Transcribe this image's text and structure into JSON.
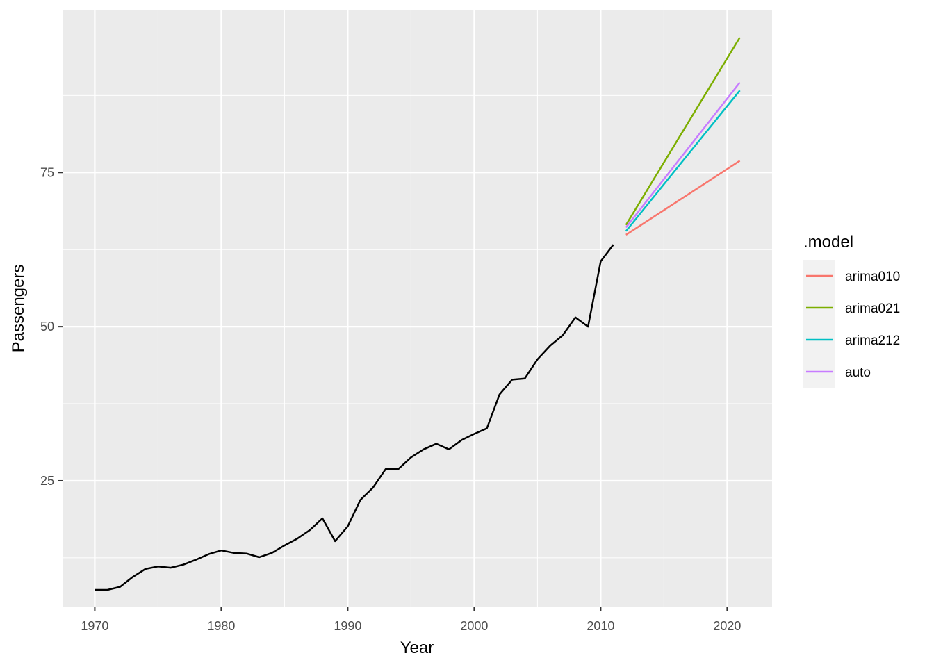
{
  "chart_data": {
    "type": "line",
    "title": "",
    "xlabel": "Year",
    "ylabel": "Passengers",
    "xlim": [
      1967.45,
      2023.55
    ],
    "ylim": [
      4.6,
      101.4
    ],
    "x_ticks": [
      1970,
      1980,
      1990,
      2000,
      2010,
      2020
    ],
    "y_ticks": [
      25,
      50,
      75
    ],
    "grid": true,
    "legend": {
      "title": ".model",
      "placement": "right"
    },
    "history": {
      "x": [
        1970,
        1971,
        1972,
        1973,
        1974,
        1975,
        1976,
        1977,
        1978,
        1979,
        1980,
        1981,
        1982,
        1983,
        1984,
        1985,
        1986,
        1987,
        1988,
        1989,
        1990,
        1991,
        1992,
        1993,
        1994,
        1995,
        1996,
        1997,
        1998,
        1999,
        2000,
        2001,
        2002,
        2003,
        2004,
        2005,
        2006,
        2007,
        2008,
        2009,
        2010,
        2011
      ],
      "values": [
        7.3,
        7.3,
        7.8,
        9.4,
        10.7,
        11.1,
        10.9,
        11.4,
        12.2,
        13.1,
        13.7,
        13.3,
        13.2,
        12.6,
        13.3,
        14.5,
        15.6,
        17.0,
        18.9,
        15.2,
        17.6,
        21.9,
        23.9,
        26.9,
        26.9,
        28.8,
        30.1,
        31.0,
        30.1,
        31.6,
        32.6,
        33.5,
        39.0,
        41.4,
        41.6,
        44.7,
        46.9,
        48.6,
        51.5,
        50.0,
        60.6,
        63.3
      ],
      "color": "#000000"
    },
    "series": [
      {
        "name": "arima010",
        "color": "#F8766D",
        "x": [
          2012,
          2021
        ],
        "values": [
          64.9,
          76.9
        ]
      },
      {
        "name": "arima021",
        "color": "#7CAE00",
        "x": [
          2012,
          2021
        ],
        "values": [
          66.5,
          96.9
        ]
      },
      {
        "name": "arima212",
        "color": "#00BFC4",
        "x": [
          2012,
          2021
        ],
        "values": [
          65.5,
          88.3
        ]
      },
      {
        "name": "auto",
        "color": "#C77CFF",
        "x": [
          2012,
          2021
        ],
        "values": [
          66.1,
          89.6
        ]
      }
    ]
  }
}
